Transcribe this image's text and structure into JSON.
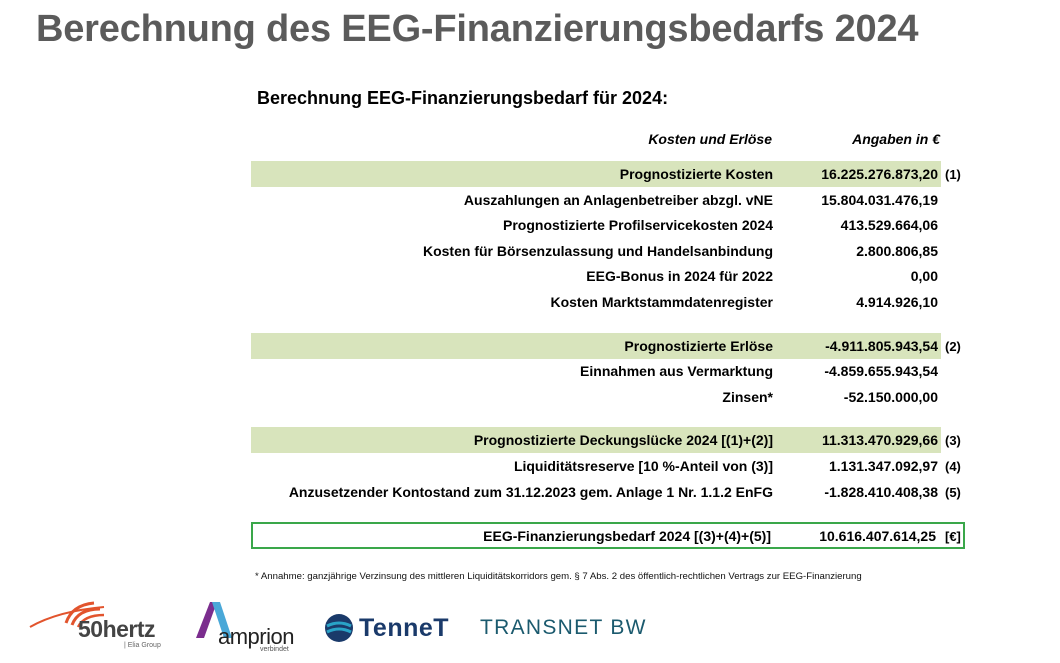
{
  "title": "Berechnung des EEG-Finanzierungsbedarfs 2024",
  "subtitle": "Berechnung EEG-Finanzierungsbedarf für 2024:",
  "header": {
    "label": "Kosten und Erlöse",
    "value": "Angaben in €"
  },
  "rows": [
    {
      "label": "Prognostizierte Kosten",
      "value": "16.225.276.873,20",
      "ref": "(1)",
      "highlight": true
    },
    {
      "label": "Auszahlungen an Anlagenbetreiber abzgl. vNE",
      "value": "15.804.031.476,19",
      "ref": ""
    },
    {
      "label": "Prognostizierte Profilservicekosten 2024",
      "value": "413.529.664,06",
      "ref": ""
    },
    {
      "label": "Kosten für Börsenzulassung und Handelsanbindung",
      "value": "2.800.806,85",
      "ref": ""
    },
    {
      "label": "EEG-Bonus in 2024 für 2022",
      "value": "0,00",
      "ref": ""
    },
    {
      "label": "Kosten Marktstammdatenregister",
      "value": "4.914.926,10",
      "ref": ""
    },
    {
      "label": "Prognostizierte Erlöse",
      "value": "-4.911.805.943,54",
      "ref": "(2)",
      "highlight": true
    },
    {
      "label": "Einnahmen aus Vermarktung",
      "value": "-4.859.655.943,54",
      "ref": ""
    },
    {
      "label": "Zinsen*",
      "value": "-52.150.000,00",
      "ref": ""
    },
    {
      "label": "Prognostizierte Deckungslücke 2024 [(1)+(2)]",
      "value": "11.313.470.929,66",
      "ref": "(3)",
      "highlight": true
    },
    {
      "label": "Liquiditätsreserve [10 %-Anteil von (3)]",
      "value": "1.131.347.092,97",
      "ref": "(4)"
    },
    {
      "label": "Anzusetzender Kontostand zum 31.12.2023 gem. Anlage 1 Nr. 1.1.2 EnFG",
      "value": "-1.828.410.408,38",
      "ref": "(5)"
    }
  ],
  "total": {
    "label": "EEG-Finanzierungsbedarf 2024 [(3)+(4)+(5)]",
    "value": "10.616.407.614,25",
    "ref": "[€]"
  },
  "footnote": "* Annahme: ganzjährige Verzinsung des mittleren Liquiditätskorridors gem. § 7 Abs. 2 des öffentlich-rechtlichen Vertrags zur EEG-Finanzierung",
  "logos": {
    "fifty_hertz": {
      "name": "50hertz",
      "sub": "| Elia Group"
    },
    "amprion": {
      "name": "amprion",
      "sub": "verbindet"
    },
    "tennet": {
      "name": "TenneT"
    },
    "transnet": {
      "name": "TRANSNET BW"
    }
  },
  "colors": {
    "highlight": "#d8e4bc",
    "total_border": "#3aa74a",
    "title": "#5b5b5b"
  }
}
